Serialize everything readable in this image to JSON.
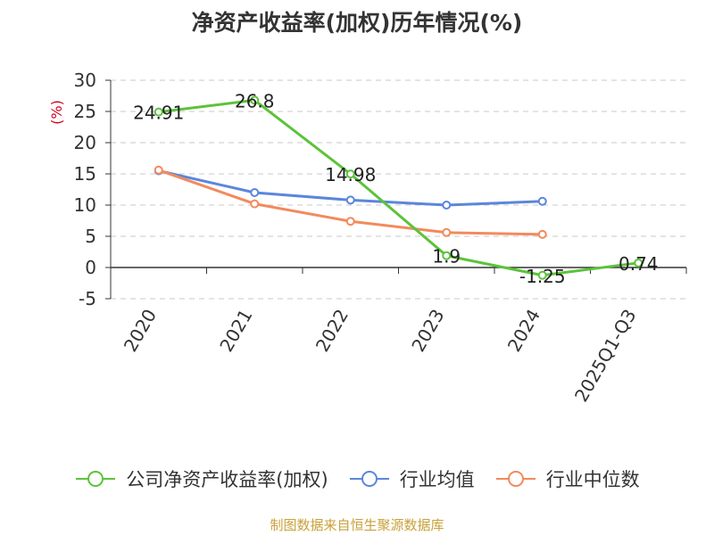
{
  "chart_data": {
    "type": "line",
    "title": "净资产收益率(加权)历年情况(%)",
    "ylabel": "(%)",
    "xlabel": "",
    "categories": [
      "2020",
      "2021",
      "2022",
      "2023",
      "2024",
      "2025Q1-Q3"
    ],
    "ylim": [
      -5,
      30
    ],
    "yticks": [
      30,
      25,
      20,
      15,
      10,
      5,
      0,
      -5
    ],
    "grid": true,
    "legend_position": "bottom",
    "series": [
      {
        "name": "公司净资产收益率(加权)",
        "color": "#5cc33a",
        "values": [
          24.91,
          26.8,
          14.98,
          1.9,
          -1.25,
          0.74
        ],
        "labels": [
          "24.91",
          "26.8",
          "14.98",
          "1.9",
          "-1.25",
          "0.74"
        ]
      },
      {
        "name": "行业均值",
        "color": "#5b86dc",
        "values": [
          15.5,
          12.0,
          10.8,
          10.0,
          10.6,
          null
        ]
      },
      {
        "name": "行业中位数",
        "color": "#f28a5c",
        "values": [
          15.6,
          10.2,
          7.4,
          5.6,
          5.3,
          null
        ]
      }
    ]
  },
  "footer": {
    "source": "制图数据来自恒生聚源数据库"
  }
}
